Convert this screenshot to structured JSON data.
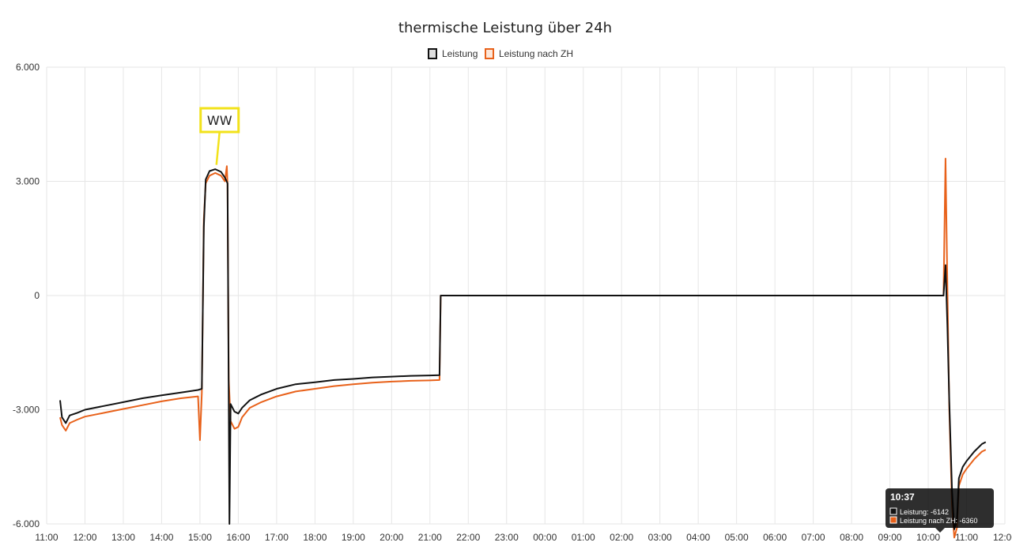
{
  "chart_data": {
    "type": "line",
    "title": "thermische Leistung über 24h",
    "xlabel": "",
    "ylabel": "",
    "ylim": [
      -6000,
      6000
    ],
    "y_ticks": [
      "6.000",
      "3.000",
      "0",
      "-3.000",
      "-6.000"
    ],
    "x_ticks": [
      "11:00",
      "12:00",
      "13:00",
      "14:00",
      "15:00",
      "16:00",
      "17:00",
      "18:00",
      "19:00",
      "20:00",
      "21:00",
      "22:00",
      "23:00",
      "00:00",
      "01:00",
      "02:00",
      "03:00",
      "04:00",
      "05:00",
      "06:00",
      "07:00",
      "08:00",
      "09:00",
      "10:00",
      "11:00",
      "12:00"
    ],
    "grid": true,
    "legend_position": "top-center",
    "series": [
      {
        "name": "Leistung",
        "color": "#111111",
        "points": [
          [
            11.35,
            -2750
          ],
          [
            11.4,
            -3200
          ],
          [
            11.5,
            -3350
          ],
          [
            11.6,
            -3150
          ],
          [
            11.8,
            -3080
          ],
          [
            12.0,
            -3000
          ],
          [
            12.5,
            -2900
          ],
          [
            13.0,
            -2800
          ],
          [
            13.5,
            -2700
          ],
          [
            14.0,
            -2620
          ],
          [
            14.5,
            -2550
          ],
          [
            14.95,
            -2480
          ],
          [
            15.05,
            -2450
          ],
          [
            15.1,
            1800
          ],
          [
            15.15,
            3050
          ],
          [
            15.25,
            3270
          ],
          [
            15.4,
            3320
          ],
          [
            15.55,
            3250
          ],
          [
            15.65,
            3100
          ],
          [
            15.72,
            2950
          ],
          [
            15.75,
            -2700
          ],
          [
            15.77,
            -6000
          ],
          [
            15.8,
            -2850
          ],
          [
            15.9,
            -3050
          ],
          [
            16.0,
            -3100
          ],
          [
            16.1,
            -2950
          ],
          [
            16.3,
            -2750
          ],
          [
            16.6,
            -2600
          ],
          [
            17.0,
            -2450
          ],
          [
            17.5,
            -2330
          ],
          [
            18.0,
            -2280
          ],
          [
            18.5,
            -2220
          ],
          [
            19.0,
            -2190
          ],
          [
            19.5,
            -2150
          ],
          [
            20.0,
            -2130
          ],
          [
            20.5,
            -2110
          ],
          [
            21.0,
            -2100
          ],
          [
            21.25,
            -2090
          ],
          [
            21.28,
            0
          ],
          [
            22.0,
            0
          ],
          [
            24.0,
            0
          ],
          [
            27.0,
            0
          ],
          [
            30.0,
            0
          ],
          [
            33.0,
            0
          ],
          [
            34.0,
            0
          ],
          [
            34.4,
            0
          ],
          [
            34.45,
            800
          ],
          [
            34.5,
            -800
          ],
          [
            34.55,
            -2800
          ],
          [
            34.62,
            -5100
          ],
          [
            34.68,
            -6142
          ],
          [
            34.75,
            -5900
          ],
          [
            34.8,
            -4800
          ],
          [
            34.9,
            -4500
          ],
          [
            35.0,
            -4350
          ],
          [
            35.2,
            -4100
          ],
          [
            35.4,
            -3900
          ],
          [
            35.5,
            -3850
          ]
        ]
      },
      {
        "name": "Leistung nach ZH",
        "color": "#e8611a",
        "points": [
          [
            11.35,
            -3200
          ],
          [
            11.4,
            -3400
          ],
          [
            11.5,
            -3550
          ],
          [
            11.6,
            -3350
          ],
          [
            11.8,
            -3260
          ],
          [
            12.0,
            -3180
          ],
          [
            12.5,
            -3080
          ],
          [
            13.0,
            -2980
          ],
          [
            13.5,
            -2880
          ],
          [
            14.0,
            -2780
          ],
          [
            14.5,
            -2700
          ],
          [
            14.95,
            -2650
          ],
          [
            15.0,
            -3800
          ],
          [
            15.05,
            -2550
          ],
          [
            15.1,
            2000
          ],
          [
            15.15,
            2950
          ],
          [
            15.25,
            3150
          ],
          [
            15.4,
            3220
          ],
          [
            15.55,
            3150
          ],
          [
            15.65,
            3000
          ],
          [
            15.7,
            3400
          ],
          [
            15.72,
            2900
          ],
          [
            15.75,
            -2200
          ],
          [
            15.8,
            -3300
          ],
          [
            15.9,
            -3500
          ],
          [
            16.0,
            -3450
          ],
          [
            16.1,
            -3200
          ],
          [
            16.3,
            -2950
          ],
          [
            16.6,
            -2800
          ],
          [
            17.0,
            -2650
          ],
          [
            17.5,
            -2520
          ],
          [
            18.0,
            -2450
          ],
          [
            18.5,
            -2380
          ],
          [
            19.0,
            -2330
          ],
          [
            19.5,
            -2290
          ],
          [
            20.0,
            -2260
          ],
          [
            20.5,
            -2240
          ],
          [
            21.0,
            -2230
          ],
          [
            21.25,
            -2220
          ],
          [
            21.28,
            0
          ],
          [
            22.0,
            0
          ],
          [
            24.0,
            0
          ],
          [
            27.0,
            0
          ],
          [
            30.0,
            0
          ],
          [
            33.0,
            0
          ],
          [
            34.0,
            0
          ],
          [
            34.4,
            0
          ],
          [
            34.45,
            3600
          ],
          [
            34.5,
            200
          ],
          [
            34.55,
            -3000
          ],
          [
            34.62,
            -5500
          ],
          [
            34.68,
            -6360
          ],
          [
            34.75,
            -6100
          ],
          [
            34.8,
            -5000
          ],
          [
            34.9,
            -4700
          ],
          [
            35.0,
            -4550
          ],
          [
            35.2,
            -4300
          ],
          [
            35.4,
            -4100
          ],
          [
            35.5,
            -4050
          ]
        ]
      }
    ],
    "annotations": [
      {
        "text": "WW",
        "target_x": 15.45,
        "target_y": 3350
      }
    ],
    "tooltip": {
      "title": "10:37",
      "lines": [
        {
          "text": "Leistung: -6142",
          "color": "#111111"
        },
        {
          "text": "Leistung nach ZH: -6360",
          "color": "#e8611a"
        }
      ]
    }
  }
}
